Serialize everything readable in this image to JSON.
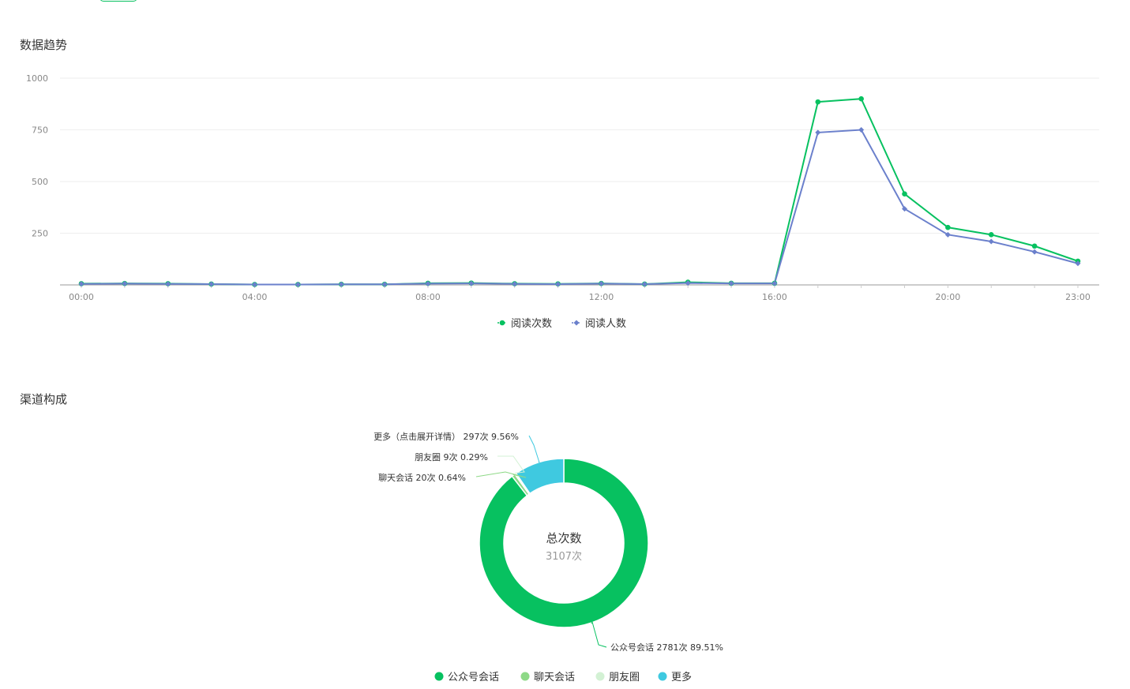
{
  "sections": {
    "trend_title": "数据趋势",
    "channel_title": "渠道构成"
  },
  "colors": {
    "reads": "#07c160",
    "readers": "#6b80cc",
    "grid": "#eeeeee",
    "axis": "#999999"
  },
  "chart_data": [
    {
      "type": "line",
      "title": "",
      "x": [
        "00:00",
        "01:00",
        "02:00",
        "03:00",
        "04:00",
        "05:00",
        "06:00",
        "07:00",
        "08:00",
        "09:00",
        "10:00",
        "11:00",
        "12:00",
        "13:00",
        "14:00",
        "15:00",
        "16:00",
        "17:00",
        "18:00",
        "19:00",
        "20:00",
        "21:00",
        "22:00",
        "23:00"
      ],
      "xtick_labels": [
        "00:00",
        "04:00",
        "08:00",
        "12:00",
        "16:00",
        "20:00",
        "23:00"
      ],
      "ytick_labels": [
        "1000",
        "750",
        "500",
        "250"
      ],
      "ylim": [
        0,
        1000
      ],
      "grid": true,
      "legend_position": "bottom",
      "series": [
        {
          "name": "阅读次数",
          "color": "#07c160",
          "marker": "circle",
          "values": [
            6,
            7,
            6,
            4,
            2,
            2,
            3,
            3,
            8,
            9,
            6,
            5,
            7,
            4,
            13,
            8,
            8,
            885,
            900,
            440,
            278,
            243,
            188,
            115
          ]
        },
        {
          "name": "阅读人数",
          "color": "#6b80cc",
          "marker": "diamond",
          "values": [
            5,
            6,
            5,
            4,
            2,
            2,
            3,
            3,
            6,
            7,
            5,
            4,
            6,
            4,
            9,
            7,
            7,
            737,
            750,
            368,
            243,
            210,
            160,
            104
          ]
        }
      ]
    },
    {
      "type": "pie",
      "variant": "donut",
      "center_title": "总次数",
      "center_value": "3107次",
      "legend_position": "bottom",
      "slices": [
        {
          "name": "公众号会话",
          "value": 2781,
          "percent": 89.51,
          "color": "#07c160",
          "label": "公众号会话 2781次 89.51%"
        },
        {
          "name": "聊天会话",
          "value": 20,
          "percent": 0.64,
          "color": "#8ed987",
          "label": "聊天会话 20次 0.64%"
        },
        {
          "name": "朋友圈",
          "value": 9,
          "percent": 0.29,
          "color": "#d3f1d4",
          "label": "朋友圈 9次 0.29%"
        },
        {
          "name": "更多",
          "value": 297,
          "percent": 9.56,
          "color": "#3fc9e0",
          "label": "更多（点击展开详情） 297次 9.56%"
        }
      ]
    }
  ]
}
